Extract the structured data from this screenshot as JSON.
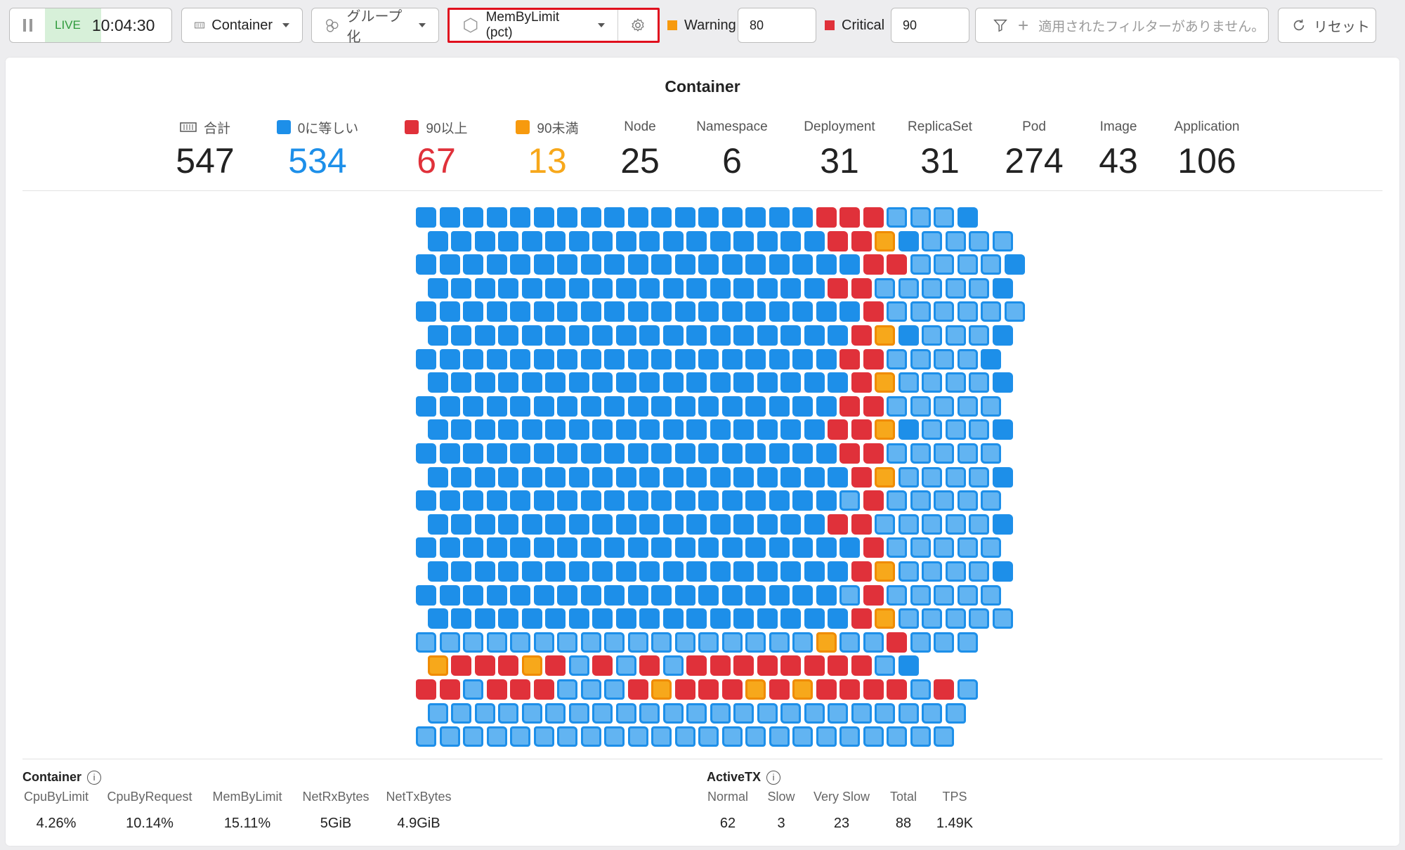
{
  "toolbar": {
    "live_label": "LIVE",
    "live_time": "10:04:30",
    "object_type": "Container",
    "group_by": "グループ化",
    "metric": "MemByLimit (pct)",
    "warning_label": "Warning",
    "warning_value": "80",
    "critical_label": "Critical",
    "critical_value": "90",
    "filter_placeholder": "適用されたフィルターがありません。",
    "reset_label": "リセット"
  },
  "colors": {
    "blue": "#1d8fe9",
    "red": "#e0313a",
    "orange": "#f7a81b",
    "warning": "#f79a0e",
    "critical": "#e0313a"
  },
  "card": {
    "title": "Container",
    "stats": [
      {
        "label": "合計",
        "value": "547"
      },
      {
        "label": "0に等しい",
        "value": "534"
      },
      {
        "label": "90以上",
        "value": "67"
      },
      {
        "label": "90未満",
        "value": "13"
      },
      {
        "label": "Node",
        "value": "25"
      },
      {
        "label": "Namespace",
        "value": "6"
      },
      {
        "label": "Deployment",
        "value": "31"
      },
      {
        "label": "ReplicaSet",
        "value": "31"
      },
      {
        "label": "Pod",
        "value": "274"
      },
      {
        "label": "Image",
        "value": "43"
      },
      {
        "label": "Application",
        "value": "106"
      }
    ]
  },
  "container_summary": {
    "title": "Container",
    "items": [
      {
        "label": "CpuByLimit",
        "value": "4.26%"
      },
      {
        "label": "CpuByRequest",
        "value": "10.14%"
      },
      {
        "label": "MemByLimit",
        "value": "15.11%"
      },
      {
        "label": "NetRxBytes",
        "value": "5GiB"
      },
      {
        "label": "NetTxBytes",
        "value": "4.9GiB"
      }
    ]
  },
  "activetx_summary": {
    "title": "ActiveTX",
    "items": [
      {
        "label": "Normal",
        "value": "62"
      },
      {
        "label": "Slow",
        "value": "3"
      },
      {
        "label": "Very Slow",
        "value": "23"
      },
      {
        "label": "Total",
        "value": "88"
      },
      {
        "label": "TPS",
        "value": "1.49K"
      }
    ]
  },
  "grid_rows": [
    "SSSSSSSSSSSSSSSSSRRRLLLS",
    "SSSSSSSSSSSSSSSSSRRONLLLL",
    "SSSSSSSSSSSSSSSSSSSRRLLLLS",
    "SSSSSSSSSSSSSSSSSRRLLLLLS",
    "SSSSSSSSSSSSSSSSSSSRLLLLLL",
    "SSSSSSSSSSSSSSSSSSROSLLLS",
    "SSSSSSSSSSSSSSSSSSRRLLLLS",
    "SSSSSSSSSSSSSSSSSSROLLLLS",
    "SSSSSSSSSSSSSSSSSSRRLLLLL",
    "SSSSSSSSSSSSSSSSSRRONLLLS",
    "SSSSSSSSSSSSSSSSSSRRLLLLL",
    "SSSSSSSSSSSSSSSSSSROLLLLS",
    "SSSSSSSSSSSSSSSSSSLRLLLLL",
    "SSSSSSSSSSSSSSSSSRRLLLLLS",
    "SSSSSSSSSSSSSSSSSSSRLLLLL",
    "SSSSSSSSSSSSSSSSSSROLLLLS",
    "SSSSSSSSSSSSSSSSSSLRLLLLL",
    "SSSSSSSSSSSSSSSSSSROLLLLL",
    "LLLLLLLLLLLLLLLLLOLLRLLL",
    "ORRRORLRLRLRRRRRRRRLS",
    "RRLRRRLLLRORRRORORRRRLRL",
    "LLLLLLLLLLLLLLLLLLLLLLL",
    "LLLLLLLLLLLLLLLLLLLLLLL"
  ]
}
